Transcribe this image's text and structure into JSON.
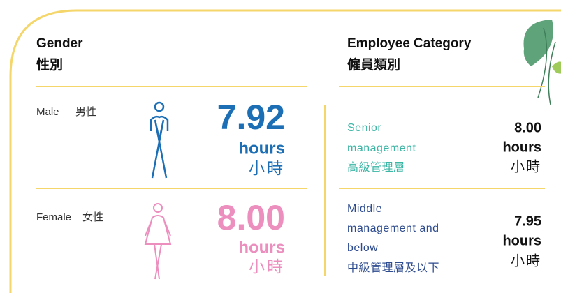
{
  "gender": {
    "title": "Gender",
    "title_zh": "性別",
    "rows": [
      {
        "label": "Male",
        "label_zh": "男性",
        "value": "7.92",
        "unit": "hours",
        "unit_zh": "小時"
      },
      {
        "label": "Female",
        "label_zh": "女性",
        "value": "8.00",
        "unit": "hours",
        "unit_zh": "小時"
      }
    ]
  },
  "employee_category": {
    "title": "Employee Category",
    "title_zh": "僱員類別",
    "rows": [
      {
        "lines": [
          "Senior",
          "management",
          "高級管理層"
        ],
        "value": "8.00",
        "unit": "hours",
        "unit_zh": "小時"
      },
      {
        "lines": [
          "Middle",
          "management and",
          "below",
          "中級管理層及以下"
        ],
        "value": "7.95",
        "unit": "hours",
        "unit_zh": "小時"
      }
    ]
  }
}
